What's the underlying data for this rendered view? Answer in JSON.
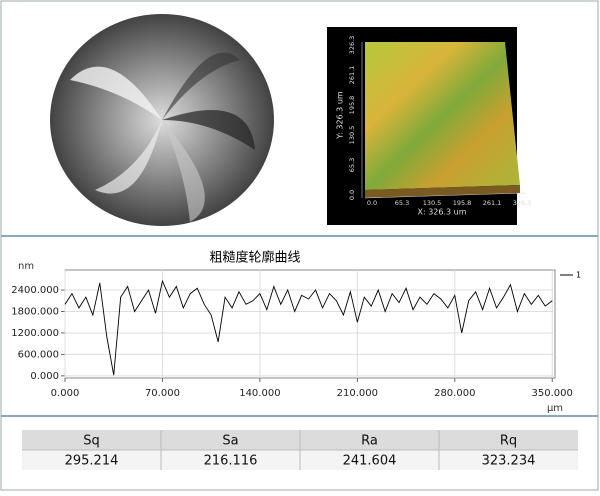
{
  "surface_image": {
    "x_ticks": [
      "0.0",
      "65.3",
      "130.5",
      "195.8",
      "261.1",
      "326.3"
    ],
    "x_label": "X: 326.3 um",
    "y_ticks": [
      "0.0",
      "65.3",
      "130.5",
      "195.8",
      "261.1",
      "326.3"
    ],
    "y_label": "Y: 326.3 um"
  },
  "chart_data": {
    "type": "line",
    "title": "粗糙度轮廓曲线",
    "y_unit": "nm",
    "x_unit": "μm",
    "x": [
      0,
      5,
      10,
      15,
      20,
      25,
      30,
      35,
      40,
      45,
      50,
      55,
      60,
      65,
      70,
      75,
      80,
      85,
      90,
      95,
      100,
      105,
      110,
      115,
      120,
      125,
      130,
      135,
      140,
      145,
      150,
      155,
      160,
      165,
      170,
      175,
      180,
      185,
      190,
      195,
      200,
      205,
      210,
      215,
      220,
      225,
      230,
      235,
      240,
      245,
      250,
      255,
      260,
      265,
      270,
      275,
      280,
      285,
      290,
      295,
      300,
      305,
      310,
      315,
      320,
      325,
      330,
      335,
      340,
      345,
      350
    ],
    "series": [
      {
        "name": "1",
        "color": "#000000",
        "values": [
          2000,
          2300,
          1900,
          2200,
          1700,
          2600,
          1100,
          20,
          2200,
          2500,
          1800,
          2100,
          2400,
          1750,
          2650,
          2200,
          2500,
          1900,
          2300,
          2450,
          2000,
          1700,
          950,
          2200,
          1900,
          2350,
          2000,
          2100,
          2300,
          1850,
          2500,
          2000,
          2400,
          1800,
          2250,
          2150,
          2400,
          1900,
          2300,
          2100,
          1700,
          2350,
          1500,
          2200,
          1950,
          2400,
          1800,
          2300,
          2050,
          2450,
          1850,
          2200,
          2000,
          2300,
          2150,
          1900,
          2250,
          1200,
          2100,
          2350,
          1850,
          2450,
          1900,
          2200,
          2550,
          1800,
          2300,
          2000,
          2250,
          1950,
          2100
        ]
      }
    ],
    "xlim": [
      0,
      352
    ],
    "ylim": [
      -60,
      2960
    ],
    "xticks": [
      {
        "value": 0,
        "label": "0.000"
      },
      {
        "value": 70,
        "label": "70.000"
      },
      {
        "value": 140,
        "label": "140.000"
      },
      {
        "value": 210,
        "label": "210.000"
      },
      {
        "value": 280,
        "label": "280.000"
      },
      {
        "value": 350,
        "label": "350.000"
      }
    ],
    "yticks": [
      {
        "value": 0,
        "label": "0.000"
      },
      {
        "value": 600,
        "label": "600.000"
      },
      {
        "value": 1200,
        "label": "1200.000"
      },
      {
        "value": 1800,
        "label": "1800.000"
      },
      {
        "value": 2400,
        "label": "2400.000"
      }
    ],
    "grid": true,
    "legend": "top-right"
  },
  "table": {
    "headers": [
      "Sq",
      "Sa",
      "Ra",
      "Rq"
    ],
    "rows": [
      [
        "295.214",
        "216.116",
        "241.604",
        "323.234"
      ]
    ]
  }
}
